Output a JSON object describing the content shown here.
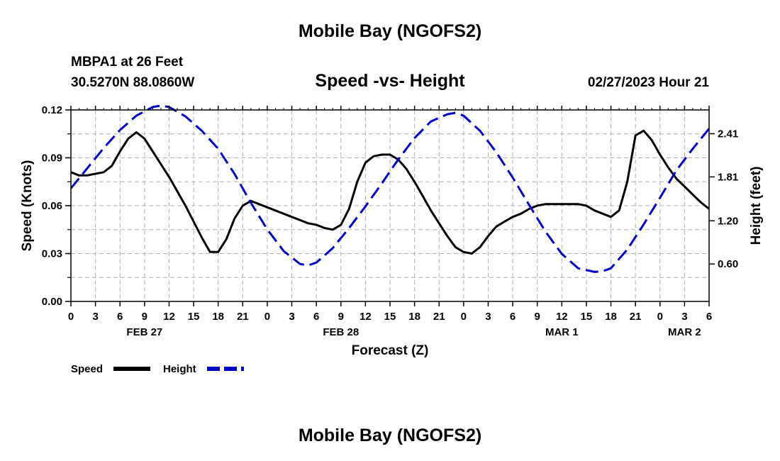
{
  "header": {
    "title": "Mobile Bay (NGOFS2)",
    "station": "MBPA1 at 26 Feet",
    "coords": "30.5270N  88.0860W",
    "subtitle": "Speed -vs- Height",
    "datetime": "02/27/2023 Hour 21",
    "footer_title": "Mobile Bay (NGOFS2)"
  },
  "chart_data": {
    "type": "line",
    "xlabel": "Forecast (Z)",
    "ylabel_left": "Speed (Knots)",
    "ylabel_right": "Height (feet)",
    "x_range_hours": [
      0,
      78
    ],
    "ylim_left": [
      0,
      0.12
    ],
    "ylim_right": [
      0.08,
      2.74
    ],
    "yticks_left": [
      "0.00",
      "0.03",
      "0.06",
      "0.09",
      "0.12"
    ],
    "yticks_right": [
      "0.60",
      "1.20",
      "1.81",
      "2.41"
    ],
    "x_tick_labels": [
      "0",
      "3",
      "6",
      "9",
      "12",
      "15",
      "18",
      "21",
      "0",
      "3",
      "6",
      "9",
      "12",
      "15",
      "18",
      "21",
      "0",
      "3",
      "6",
      "9",
      "12",
      "15",
      "18",
      "21",
      "0",
      "3",
      "6"
    ],
    "date_labels": [
      {
        "hour": 9,
        "label": "FEB 27"
      },
      {
        "hour": 33,
        "label": "FEB 28"
      },
      {
        "hour": 60,
        "label": "MAR 1"
      },
      {
        "hour": 75,
        "label": "MAR 2"
      }
    ],
    "grid": true,
    "legend_position": "bottom-left",
    "series": [
      {
        "name": "Speed",
        "axis": "left",
        "color": "#000000",
        "style": "solid",
        "x": [
          0,
          1,
          2,
          3,
          4,
          5,
          6,
          7,
          8,
          9,
          10,
          11,
          12,
          13,
          14,
          15,
          16,
          17,
          18,
          19,
          20,
          21,
          22,
          23,
          24,
          25,
          26,
          27,
          28,
          29,
          30,
          31,
          32,
          33,
          34,
          35,
          36,
          37,
          38,
          39,
          40,
          41,
          42,
          43,
          44,
          45,
          46,
          47,
          48,
          49,
          50,
          51,
          52,
          53,
          54,
          55,
          56,
          57,
          58,
          59,
          60,
          61,
          62,
          63,
          64,
          65,
          66,
          67,
          68,
          69,
          70,
          71,
          72,
          73,
          74,
          75,
          76,
          77,
          78
        ],
        "values": [
          0.081,
          0.079,
          0.079,
          0.08,
          0.081,
          0.085,
          0.094,
          0.102,
          0.106,
          0.102,
          0.094,
          0.086,
          0.078,
          0.069,
          0.06,
          0.05,
          0.04,
          0.031,
          0.031,
          0.039,
          0.052,
          0.06,
          0.063,
          0.061,
          0.059,
          0.057,
          0.055,
          0.053,
          0.051,
          0.049,
          0.048,
          0.046,
          0.045,
          0.048,
          0.058,
          0.075,
          0.087,
          0.091,
          0.092,
          0.092,
          0.089,
          0.083,
          0.075,
          0.066,
          0.057,
          0.049,
          0.041,
          0.034,
          0.031,
          0.03,
          0.034,
          0.041,
          0.047,
          0.05,
          0.053,
          0.055,
          0.058,
          0.06,
          0.061,
          0.061,
          0.061,
          0.061,
          0.061,
          0.06,
          0.057,
          0.055,
          0.053,
          0.057,
          0.075,
          0.104,
          0.107,
          0.101,
          0.092,
          0.084,
          0.077,
          0.072,
          0.067,
          0.062,
          0.058
        ]
      },
      {
        "name": "Height",
        "axis": "right",
        "color": "#0000cc",
        "style": "dashed",
        "x": [
          0,
          2,
          4,
          6,
          8,
          10,
          11,
          12,
          14,
          16,
          18,
          20,
          22,
          24,
          26,
          28,
          29,
          30,
          32,
          34,
          36,
          38,
          40,
          42,
          44,
          46,
          47,
          48,
          50,
          52,
          54,
          56,
          58,
          60,
          62,
          64,
          65,
          66,
          68,
          70,
          72,
          74,
          76,
          78
        ],
        "values": [
          1.65,
          1.93,
          2.21,
          2.46,
          2.66,
          2.78,
          2.8,
          2.78,
          2.65,
          2.45,
          2.2,
          1.85,
          1.45,
          1.08,
          0.78,
          0.6,
          0.58,
          0.62,
          0.82,
          1.1,
          1.4,
          1.72,
          2.05,
          2.35,
          2.58,
          2.68,
          2.7,
          2.66,
          2.45,
          2.15,
          1.8,
          1.42,
          1.05,
          0.74,
          0.54,
          0.49,
          0.5,
          0.54,
          0.8,
          1.15,
          1.52,
          1.9,
          2.2,
          2.48
        ]
      }
    ]
  }
}
